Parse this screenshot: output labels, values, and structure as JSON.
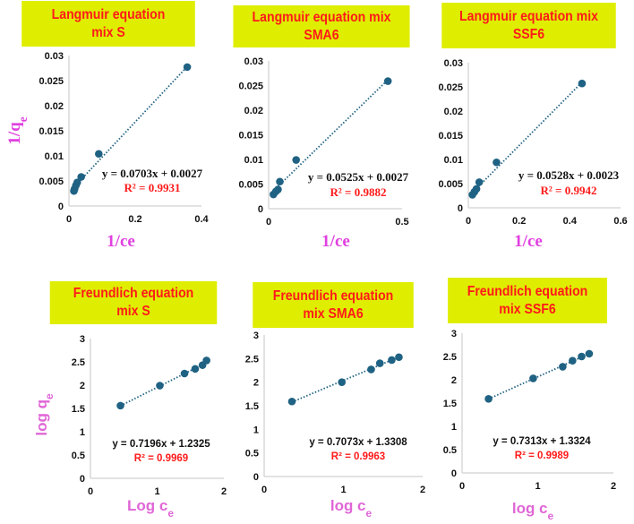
{
  "colors": {
    "title_bg": "#dfee00",
    "title_text": "#ff1a1a",
    "marker": "#1f6283",
    "axis_label": "#e040e0",
    "r2_text": "#ff1a1a",
    "axis_line": "#d9d9d9"
  },
  "chart_data": [
    {
      "type": "scatter",
      "title_lines": [
        "Langmuir equation",
        "mix S"
      ],
      "xlabel": {
        "main": "1/ce",
        "sub": ""
      },
      "ylabel": {
        "main": "1/q",
        "sub": "e"
      },
      "xlim": [
        0,
        0.4
      ],
      "ylim": [
        0,
        0.03
      ],
      "xticks": [
        "0",
        "0.2",
        "0.4"
      ],
      "xtick_values": [
        0,
        0.2,
        0.4
      ],
      "yticks": [
        "0",
        "0.005",
        "0.01",
        "0.015",
        "0.02",
        "0.025",
        "0.03"
      ],
      "ytick_values": [
        0,
        0.005,
        0.01,
        0.015,
        0.02,
        0.025,
        0.03
      ],
      "points": [
        [
          0.015,
          0.003
        ],
        [
          0.017,
          0.0034
        ],
        [
          0.021,
          0.0041
        ],
        [
          0.025,
          0.0047
        ],
        [
          0.037,
          0.0058
        ],
        [
          0.09,
          0.0104
        ],
        [
          0.357,
          0.0277
        ]
      ],
      "trendline": {
        "slope": 0.0703,
        "intercept": 0.0027,
        "equation": "y = 0.0703x + 0.0027",
        "r2": "R² = 0.9931"
      }
    },
    {
      "type": "scatter",
      "title_lines": [
        "Langmuir equation mix",
        "SMA6"
      ],
      "xlabel": {
        "main": "1/ce",
        "sub": ""
      },
      "ylabel": {
        "main": "",
        "sub": ""
      },
      "xlim": [
        0,
        0.5
      ],
      "ylim": [
        0,
        0.03
      ],
      "xticks": [
        "0",
        "0.5"
      ],
      "xtick_values": [
        0,
        0.5
      ],
      "yticks": [
        "0",
        "0.005",
        "0.01",
        "0.015",
        "0.02",
        "0.025",
        "0.03"
      ],
      "ytick_values": [
        0,
        0.005,
        0.01,
        0.015,
        0.02,
        0.025,
        0.03
      ],
      "points": [
        [
          0.018,
          0.0029
        ],
        [
          0.027,
          0.0035
        ],
        [
          0.035,
          0.0039
        ],
        [
          0.042,
          0.0055
        ],
        [
          0.103,
          0.0099
        ],
        [
          0.447,
          0.0259
        ]
      ],
      "trendline": {
        "slope": 0.0525,
        "intercept": 0.0027,
        "equation": "y = 0.0525x + 0.0027",
        "r2": "R² = 0.9882"
      }
    },
    {
      "type": "scatter",
      "title_lines": [
        "Langmuir equation mix",
        "SSF6"
      ],
      "xlabel": {
        "main": "1/ce",
        "sub": ""
      },
      "ylabel": {
        "main": "",
        "sub": ""
      },
      "xlim": [
        0,
        0.6
      ],
      "ylim": [
        0,
        0.03
      ],
      "xticks": [
        "0",
        "0.2",
        "0.4",
        "0.6"
      ],
      "xtick_values": [
        0,
        0.2,
        0.4,
        0.6
      ],
      "yticks": [
        "0",
        "0.005",
        "0.01",
        "0.015",
        "0.02",
        "0.025",
        "0.03"
      ],
      "ytick_values": [
        0,
        0.005,
        0.01,
        0.015,
        0.02,
        0.025,
        0.03
      ],
      "points": [
        [
          0.016,
          0.0027
        ],
        [
          0.024,
          0.0033
        ],
        [
          0.032,
          0.0039
        ],
        [
          0.043,
          0.0053
        ],
        [
          0.111,
          0.0094
        ],
        [
          0.448,
          0.0257
        ]
      ],
      "trendline": {
        "slope": 0.0528,
        "intercept": 0.0023,
        "equation": "y = 0.0528x + 0.0023",
        "r2": "R² = 0.9942"
      }
    },
    {
      "type": "scatter",
      "title_lines": [
        "Freundlich equation",
        "mix S"
      ],
      "xlabel": {
        "main": "Log c",
        "sub": "e"
      },
      "ylabel": {
        "main": "log q",
        "sub": "e"
      },
      "xlim": [
        0,
        2
      ],
      "ylim": [
        0,
        3
      ],
      "xticks": [
        "0",
        "1",
        "2"
      ],
      "xtick_values": [
        0,
        1,
        2
      ],
      "yticks": [
        "0",
        "0.5",
        "1",
        "1.5",
        "2",
        "2.5",
        "3"
      ],
      "ytick_values": [
        0,
        0.5,
        1,
        1.5,
        2,
        2.5,
        3
      ],
      "points": [
        [
          0.45,
          1.56
        ],
        [
          1.04,
          1.99
        ],
        [
          1.41,
          2.25
        ],
        [
          1.57,
          2.35
        ],
        [
          1.68,
          2.43
        ],
        [
          1.74,
          2.53
        ]
      ],
      "trendline": {
        "slope": 0.7196,
        "intercept": 1.2325,
        "equation": "y = 0.7196x + 1.2325",
        "r2": "R² = 0.9969"
      }
    },
    {
      "type": "scatter",
      "title_lines": [
        "Freundlich equation",
        "mix SMA6"
      ],
      "xlabel": {
        "main": "log c",
        "sub": "e"
      },
      "ylabel": {
        "main": "",
        "sub": ""
      },
      "xlim": [
        0,
        2
      ],
      "ylim": [
        0,
        3
      ],
      "xticks": [
        "0",
        "1",
        "2"
      ],
      "xtick_values": [
        0,
        1,
        2
      ],
      "yticks": [
        "0",
        "0.5",
        "1",
        "1.5",
        "2",
        "2.5",
        "3"
      ],
      "ytick_values": [
        0,
        0.5,
        1,
        1.5,
        2,
        2.5,
        3
      ],
      "points": [
        [
          0.35,
          1.59
        ],
        [
          0.98,
          2.0
        ],
        [
          1.35,
          2.27
        ],
        [
          1.46,
          2.4
        ],
        [
          1.61,
          2.47
        ],
        [
          1.7,
          2.53
        ]
      ],
      "trendline": {
        "slope": 0.7073,
        "intercept": 1.3308,
        "equation": "y = 0.7073x + 1.3308",
        "r2": "R² = 0.9963"
      }
    },
    {
      "type": "scatter",
      "title_lines": [
        "Freundlich equation",
        "mix SSF6"
      ],
      "xlabel": {
        "main": "log c",
        "sub": "e"
      },
      "ylabel": {
        "main": "",
        "sub": ""
      },
      "xlim": [
        0,
        2
      ],
      "ylim": [
        0,
        3
      ],
      "xticks": [
        "0",
        "1",
        "2"
      ],
      "xtick_values": [
        0,
        1,
        2
      ],
      "yticks": [
        "0",
        "0.5",
        "1",
        "1.5",
        "2",
        "2.5",
        "3"
      ],
      "ytick_values": [
        0,
        0.5,
        1,
        1.5,
        2,
        2.5,
        3
      ],
      "points": [
        [
          0.35,
          1.59
        ],
        [
          0.94,
          2.03
        ],
        [
          1.33,
          2.28
        ],
        [
          1.46,
          2.41
        ],
        [
          1.58,
          2.5
        ],
        [
          1.68,
          2.56
        ]
      ],
      "trendline": {
        "slope": 0.7313,
        "intercept": 1.3324,
        "equation": "y = 0.7313x + 1.3324",
        "r2": "R² = 0.9989"
      }
    }
  ]
}
